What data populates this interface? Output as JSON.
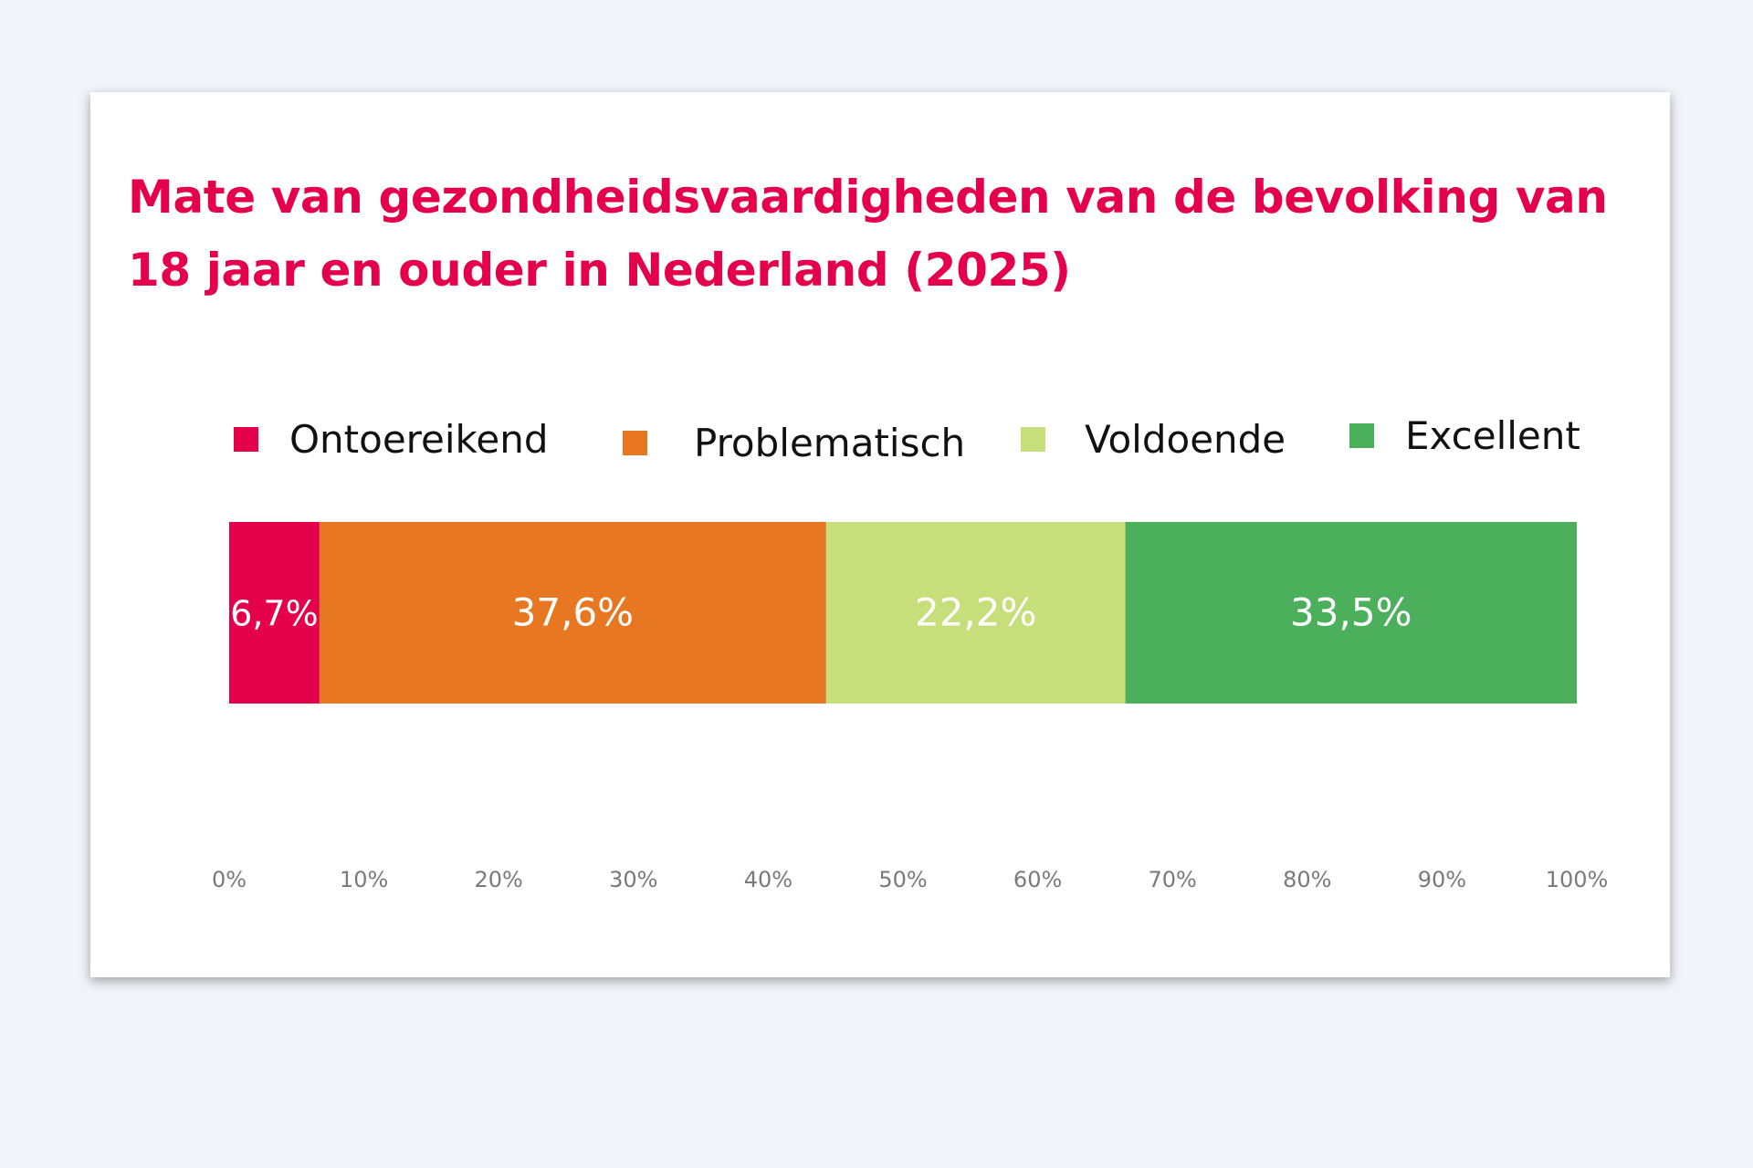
{
  "chart_data": {
    "type": "bar",
    "orientation": "horizontal",
    "stacked": true,
    "title": "Mate van gezondheidsvaardigheden van de bevolking van 18 jaar en ouder in Nederland (2025)",
    "title_lines": [
      "Mate van gezondheidsvaardigheden van de bevolking van",
      "18 jaar en ouder in Nederland (2025)"
    ],
    "xlim": [
      0,
      100
    ],
    "x_ticks": [
      0,
      10,
      20,
      30,
      40,
      50,
      60,
      70,
      80,
      90,
      100
    ],
    "x_tick_labels": [
      "0%",
      "10%",
      "20%",
      "30%",
      "40%",
      "50%",
      "60%",
      "70%",
      "80%",
      "90%",
      "100%"
    ],
    "grid": false,
    "legend_position": "top",
    "series": [
      {
        "name": "Ontoereikend",
        "value": 6.7,
        "label": "6,7%",
        "color": "#e4004b"
      },
      {
        "name": "Problematisch",
        "value": 37.6,
        "label": "37,6%",
        "color": "#e87722"
      },
      {
        "name": "Voldoende",
        "value": 22.2,
        "label": "22,2%",
        "color": "#c6df7b"
      },
      {
        "name": "Excellent",
        "value": 33.5,
        "label": "33,5%",
        "color": "#4caf5c"
      }
    ]
  }
}
